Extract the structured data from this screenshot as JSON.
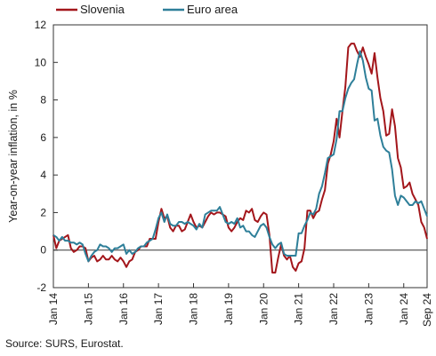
{
  "source_note": "Source: SURS, Eurostat.",
  "chart_data": {
    "type": "line",
    "title": "",
    "xlabel": "",
    "ylabel": "Year-on-year inflation, in %",
    "ylim": [
      -2,
      12
    ],
    "xlim": [
      "2014-01",
      "2024-09"
    ],
    "yticks": [
      -2,
      0,
      2,
      4,
      6,
      8,
      10,
      12
    ],
    "xticks": [
      "Jan 14",
      "Jan 15",
      "Jan 16",
      "Jan 17",
      "Jan 18",
      "Jan 19",
      "Jan 20",
      "Jan 21",
      "Jan 22",
      "Jan 23",
      "Jan 24",
      "Sep 24"
    ],
    "grid": false,
    "zero_line": true,
    "legend": "top-left",
    "colors": {
      "Slovenia": "#a3161b",
      "Euro area": "#2e7f99"
    },
    "series": [
      {
        "name": "Slovenia",
        "points": [
          [
            "2014-01",
            0.8
          ],
          [
            "2014-02",
            0.1
          ],
          [
            "2014-03",
            0.5
          ],
          [
            "2014-04",
            0.6
          ],
          [
            "2014-05",
            0.7
          ],
          [
            "2014-06",
            0.8
          ],
          [
            "2014-07",
            0.1
          ],
          [
            "2014-08",
            -0.1
          ],
          [
            "2014-09",
            0.0
          ],
          [
            "2014-10",
            0.2
          ],
          [
            "2014-11",
            0.2
          ],
          [
            "2014-12",
            0.1
          ],
          [
            "2015-01",
            -0.6
          ],
          [
            "2015-02",
            -0.4
          ],
          [
            "2015-03",
            -0.3
          ],
          [
            "2015-04",
            -0.6
          ],
          [
            "2015-05",
            -0.5
          ],
          [
            "2015-06",
            -0.3
          ],
          [
            "2015-07",
            -0.5
          ],
          [
            "2015-08",
            -0.5
          ],
          [
            "2015-09",
            -0.3
          ],
          [
            "2015-10",
            -0.5
          ],
          [
            "2015-11",
            -0.6
          ],
          [
            "2015-12",
            -0.4
          ],
          [
            "2016-01",
            -0.6
          ],
          [
            "2016-02",
            -0.9
          ],
          [
            "2016-03",
            -0.6
          ],
          [
            "2016-04",
            -0.5
          ],
          [
            "2016-05",
            -0.1
          ],
          [
            "2016-06",
            0.0
          ],
          [
            "2016-07",
            0.2
          ],
          [
            "2016-08",
            0.2
          ],
          [
            "2016-09",
            0.2
          ],
          [
            "2016-10",
            0.6
          ],
          [
            "2016-11",
            0.6
          ],
          [
            "2016-12",
            0.6
          ],
          [
            "2017-01",
            1.5
          ],
          [
            "2017-02",
            2.2
          ],
          [
            "2017-03",
            1.7
          ],
          [
            "2017-04",
            1.8
          ],
          [
            "2017-05",
            1.2
          ],
          [
            "2017-06",
            1.0
          ],
          [
            "2017-07",
            1.3
          ],
          [
            "2017-08",
            1.3
          ],
          [
            "2017-09",
            1.0
          ],
          [
            "2017-10",
            1.1
          ],
          [
            "2017-11",
            1.5
          ],
          [
            "2017-12",
            1.9
          ],
          [
            "2018-01",
            1.5
          ],
          [
            "2018-02",
            1.2
          ],
          [
            "2018-03",
            1.3
          ],
          [
            "2018-04",
            1.2
          ],
          [
            "2018-05",
            1.5
          ],
          [
            "2018-06",
            1.8
          ],
          [
            "2018-07",
            2.0
          ],
          [
            "2018-08",
            1.9
          ],
          [
            "2018-09",
            2.0
          ],
          [
            "2018-10",
            2.0
          ],
          [
            "2018-11",
            1.9
          ],
          [
            "2018-12",
            1.8
          ],
          [
            "2019-01",
            1.2
          ],
          [
            "2019-02",
            1.0
          ],
          [
            "2019-03",
            1.2
          ],
          [
            "2019-04",
            1.5
          ],
          [
            "2019-05",
            1.7
          ],
          [
            "2019-06",
            1.6
          ],
          [
            "2019-07",
            2.1
          ],
          [
            "2019-08",
            2.0
          ],
          [
            "2019-09",
            2.2
          ],
          [
            "2019-10",
            1.6
          ],
          [
            "2019-11",
            1.5
          ],
          [
            "2019-12",
            1.8
          ],
          [
            "2020-01",
            2.0
          ],
          [
            "2020-02",
            1.9
          ],
          [
            "2020-03",
            0.8
          ],
          [
            "2020-04",
            -1.2
          ],
          [
            "2020-05",
            -1.2
          ],
          [
            "2020-06",
            -0.4
          ],
          [
            "2020-07",
            0.3
          ],
          [
            "2020-08",
            -0.3
          ],
          [
            "2020-09",
            -0.5
          ],
          [
            "2020-10",
            -0.3
          ],
          [
            "2020-11",
            -0.9
          ],
          [
            "2020-12",
            -1.1
          ],
          [
            "2021-01",
            -0.7
          ],
          [
            "2021-02",
            -0.6
          ],
          [
            "2021-03",
            0.1
          ],
          [
            "2021-04",
            2.1
          ],
          [
            "2021-05",
            2.1
          ],
          [
            "2021-06",
            1.7
          ],
          [
            "2021-07",
            2.0
          ],
          [
            "2021-08",
            2.1
          ],
          [
            "2021-09",
            2.7
          ],
          [
            "2021-10",
            3.2
          ],
          [
            "2021-11",
            4.6
          ],
          [
            "2021-12",
            5.1
          ],
          [
            "2022-01",
            5.8
          ],
          [
            "2022-02",
            7.0
          ],
          [
            "2022-03",
            6.0
          ],
          [
            "2022-04",
            7.4
          ],
          [
            "2022-05",
            8.7
          ],
          [
            "2022-06",
            10.8
          ],
          [
            "2022-07",
            11.0
          ],
          [
            "2022-08",
            11.0
          ],
          [
            "2022-09",
            10.6
          ],
          [
            "2022-10",
            10.3
          ],
          [
            "2022-11",
            10.8
          ],
          [
            "2022-12",
            10.3
          ],
          [
            "2023-01",
            9.9
          ],
          [
            "2023-02",
            9.4
          ],
          [
            "2023-03",
            10.5
          ],
          [
            "2023-04",
            9.2
          ],
          [
            "2023-05",
            8.1
          ],
          [
            "2023-06",
            7.4
          ],
          [
            "2023-07",
            6.1
          ],
          [
            "2023-08",
            6.2
          ],
          [
            "2023-09",
            7.5
          ],
          [
            "2023-10",
            6.6
          ],
          [
            "2023-11",
            4.9
          ],
          [
            "2023-12",
            4.4
          ],
          [
            "2024-01",
            3.3
          ],
          [
            "2024-02",
            3.4
          ],
          [
            "2024-03",
            3.6
          ],
          [
            "2024-04",
            3.0
          ],
          [
            "2024-05",
            2.7
          ],
          [
            "2024-06",
            2.4
          ],
          [
            "2024-07",
            1.5
          ],
          [
            "2024-08",
            1.2
          ],
          [
            "2024-09",
            0.6
          ]
        ]
      },
      {
        "name": "Euro area",
        "points": [
          [
            "2014-01",
            0.8
          ],
          [
            "2014-02",
            0.7
          ],
          [
            "2014-03",
            0.5
          ],
          [
            "2014-04",
            0.7
          ],
          [
            "2014-05",
            0.5
          ],
          [
            "2014-06",
            0.5
          ],
          [
            "2014-07",
            0.4
          ],
          [
            "2014-08",
            0.4
          ],
          [
            "2014-09",
            0.3
          ],
          [
            "2014-10",
            0.4
          ],
          [
            "2014-11",
            0.3
          ],
          [
            "2014-12",
            -0.2
          ],
          [
            "2015-01",
            -0.6
          ],
          [
            "2015-02",
            -0.3
          ],
          [
            "2015-03",
            -0.1
          ],
          [
            "2015-04",
            0.0
          ],
          [
            "2015-05",
            0.3
          ],
          [
            "2015-06",
            0.2
          ],
          [
            "2015-07",
            0.2
          ],
          [
            "2015-08",
            0.1
          ],
          [
            "2015-09",
            -0.1
          ],
          [
            "2015-10",
            0.1
          ],
          [
            "2015-11",
            0.1
          ],
          [
            "2015-12",
            0.2
          ],
          [
            "2016-01",
            0.3
          ],
          [
            "2016-02",
            -0.2
          ],
          [
            "2016-03",
            0.0
          ],
          [
            "2016-04",
            -0.2
          ],
          [
            "2016-05",
            -0.1
          ],
          [
            "2016-06",
            0.1
          ],
          [
            "2016-07",
            0.2
          ],
          [
            "2016-08",
            0.2
          ],
          [
            "2016-09",
            0.4
          ],
          [
            "2016-10",
            0.5
          ],
          [
            "2016-11",
            0.6
          ],
          [
            "2016-12",
            1.1
          ],
          [
            "2017-01",
            1.7
          ],
          [
            "2017-02",
            2.0
          ],
          [
            "2017-03",
            1.5
          ],
          [
            "2017-04",
            1.9
          ],
          [
            "2017-05",
            1.4
          ],
          [
            "2017-06",
            1.3
          ],
          [
            "2017-07",
            1.3
          ],
          [
            "2017-08",
            1.5
          ],
          [
            "2017-09",
            1.5
          ],
          [
            "2017-10",
            1.4
          ],
          [
            "2017-11",
            1.5
          ],
          [
            "2017-12",
            1.4
          ],
          [
            "2018-01",
            1.3
          ],
          [
            "2018-02",
            1.1
          ],
          [
            "2018-03",
            1.4
          ],
          [
            "2018-04",
            1.2
          ],
          [
            "2018-05",
            1.9
          ],
          [
            "2018-06",
            2.0
          ],
          [
            "2018-07",
            2.1
          ],
          [
            "2018-08",
            2.1
          ],
          [
            "2018-09",
            2.1
          ],
          [
            "2018-10",
            2.3
          ],
          [
            "2018-11",
            1.9
          ],
          [
            "2018-12",
            1.5
          ],
          [
            "2019-01",
            1.4
          ],
          [
            "2019-02",
            1.5
          ],
          [
            "2019-03",
            1.4
          ],
          [
            "2019-04",
            1.7
          ],
          [
            "2019-05",
            1.2
          ],
          [
            "2019-06",
            1.3
          ],
          [
            "2019-07",
            1.0
          ],
          [
            "2019-08",
            1.0
          ],
          [
            "2019-09",
            0.8
          ],
          [
            "2019-10",
            0.7
          ],
          [
            "2019-11",
            1.0
          ],
          [
            "2019-12",
            1.3
          ],
          [
            "2020-01",
            1.4
          ],
          [
            "2020-02",
            1.2
          ],
          [
            "2020-03",
            0.7
          ],
          [
            "2020-04",
            0.3
          ],
          [
            "2020-05",
            0.1
          ],
          [
            "2020-06",
            0.3
          ],
          [
            "2020-07",
            0.4
          ],
          [
            "2020-08",
            -0.2
          ],
          [
            "2020-09",
            -0.3
          ],
          [
            "2020-10",
            -0.3
          ],
          [
            "2020-11",
            -0.3
          ],
          [
            "2020-12",
            -0.3
          ],
          [
            "2021-01",
            0.9
          ],
          [
            "2021-02",
            0.9
          ],
          [
            "2021-03",
            1.3
          ],
          [
            "2021-04",
            1.6
          ],
          [
            "2021-05",
            2.0
          ],
          [
            "2021-06",
            1.9
          ],
          [
            "2021-07",
            2.2
          ],
          [
            "2021-08",
            3.0
          ],
          [
            "2021-09",
            3.4
          ],
          [
            "2021-10",
            4.1
          ],
          [
            "2021-11",
            4.9
          ],
          [
            "2021-12",
            5.0
          ],
          [
            "2022-01",
            5.1
          ],
          [
            "2022-02",
            5.9
          ],
          [
            "2022-03",
            7.4
          ],
          [
            "2022-04",
            7.4
          ],
          [
            "2022-05",
            8.1
          ],
          [
            "2022-06",
            8.6
          ],
          [
            "2022-07",
            8.9
          ],
          [
            "2022-08",
            9.1
          ],
          [
            "2022-09",
            9.9
          ],
          [
            "2022-10",
            10.6
          ],
          [
            "2022-11",
            10.1
          ],
          [
            "2022-12",
            9.2
          ],
          [
            "2023-01",
            8.6
          ],
          [
            "2023-02",
            8.5
          ],
          [
            "2023-03",
            6.9
          ],
          [
            "2023-04",
            7.0
          ],
          [
            "2023-05",
            6.1
          ],
          [
            "2023-06",
            5.5
          ],
          [
            "2023-07",
            5.3
          ],
          [
            "2023-08",
            5.2
          ],
          [
            "2023-09",
            4.3
          ],
          [
            "2023-10",
            2.9
          ],
          [
            "2023-11",
            2.4
          ],
          [
            "2023-12",
            2.9
          ],
          [
            "2024-01",
            2.8
          ],
          [
            "2024-02",
            2.6
          ],
          [
            "2024-03",
            2.4
          ],
          [
            "2024-04",
            2.4
          ],
          [
            "2024-05",
            2.6
          ],
          [
            "2024-06",
            2.5
          ],
          [
            "2024-07",
            2.6
          ],
          [
            "2024-08",
            2.2
          ],
          [
            "2024-09",
            1.8
          ]
        ]
      }
    ]
  }
}
